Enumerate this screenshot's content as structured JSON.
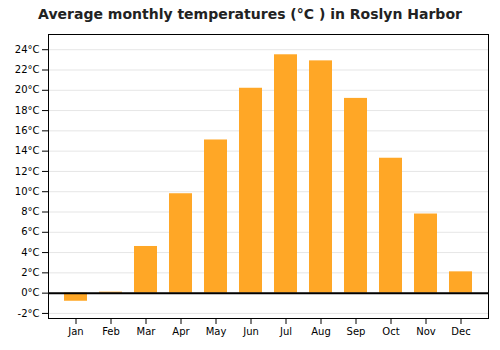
{
  "chart_data": {
    "type": "bar",
    "title": "Average monthly temperatures (°C ) in Roslyn Harbor",
    "categories": [
      "Jan",
      "Feb",
      "Mar",
      "Apr",
      "May",
      "Jun",
      "Jul",
      "Aug",
      "Sep",
      "Oct",
      "Nov",
      "Dec"
    ],
    "values": [
      -0.8,
      0.1,
      4.6,
      9.8,
      15.1,
      20.2,
      23.5,
      22.9,
      19.2,
      13.3,
      7.8,
      2.1
    ],
    "color": "#FFA726",
    "ylim": [
      -2.5,
      25.5
    ],
    "yticks": [
      {
        "value": -2,
        "label": "-2°C"
      },
      {
        "value": 0,
        "label": "0°C"
      },
      {
        "value": 2,
        "label": "2°C"
      },
      {
        "value": 4,
        "label": "4°C"
      },
      {
        "value": 6,
        "label": "6°C"
      },
      {
        "value": 8,
        "label": "8°C"
      },
      {
        "value": 10,
        "label": "10°C"
      },
      {
        "value": 12,
        "label": "12°C"
      },
      {
        "value": 14,
        "label": "14°C"
      },
      {
        "value": 16,
        "label": "16°C"
      },
      {
        "value": 18,
        "label": "18°C"
      },
      {
        "value": 20,
        "label": "20°C"
      },
      {
        "value": 22,
        "label": "22°C"
      },
      {
        "value": 24,
        "label": "24°C"
      }
    ],
    "grid": true
  }
}
